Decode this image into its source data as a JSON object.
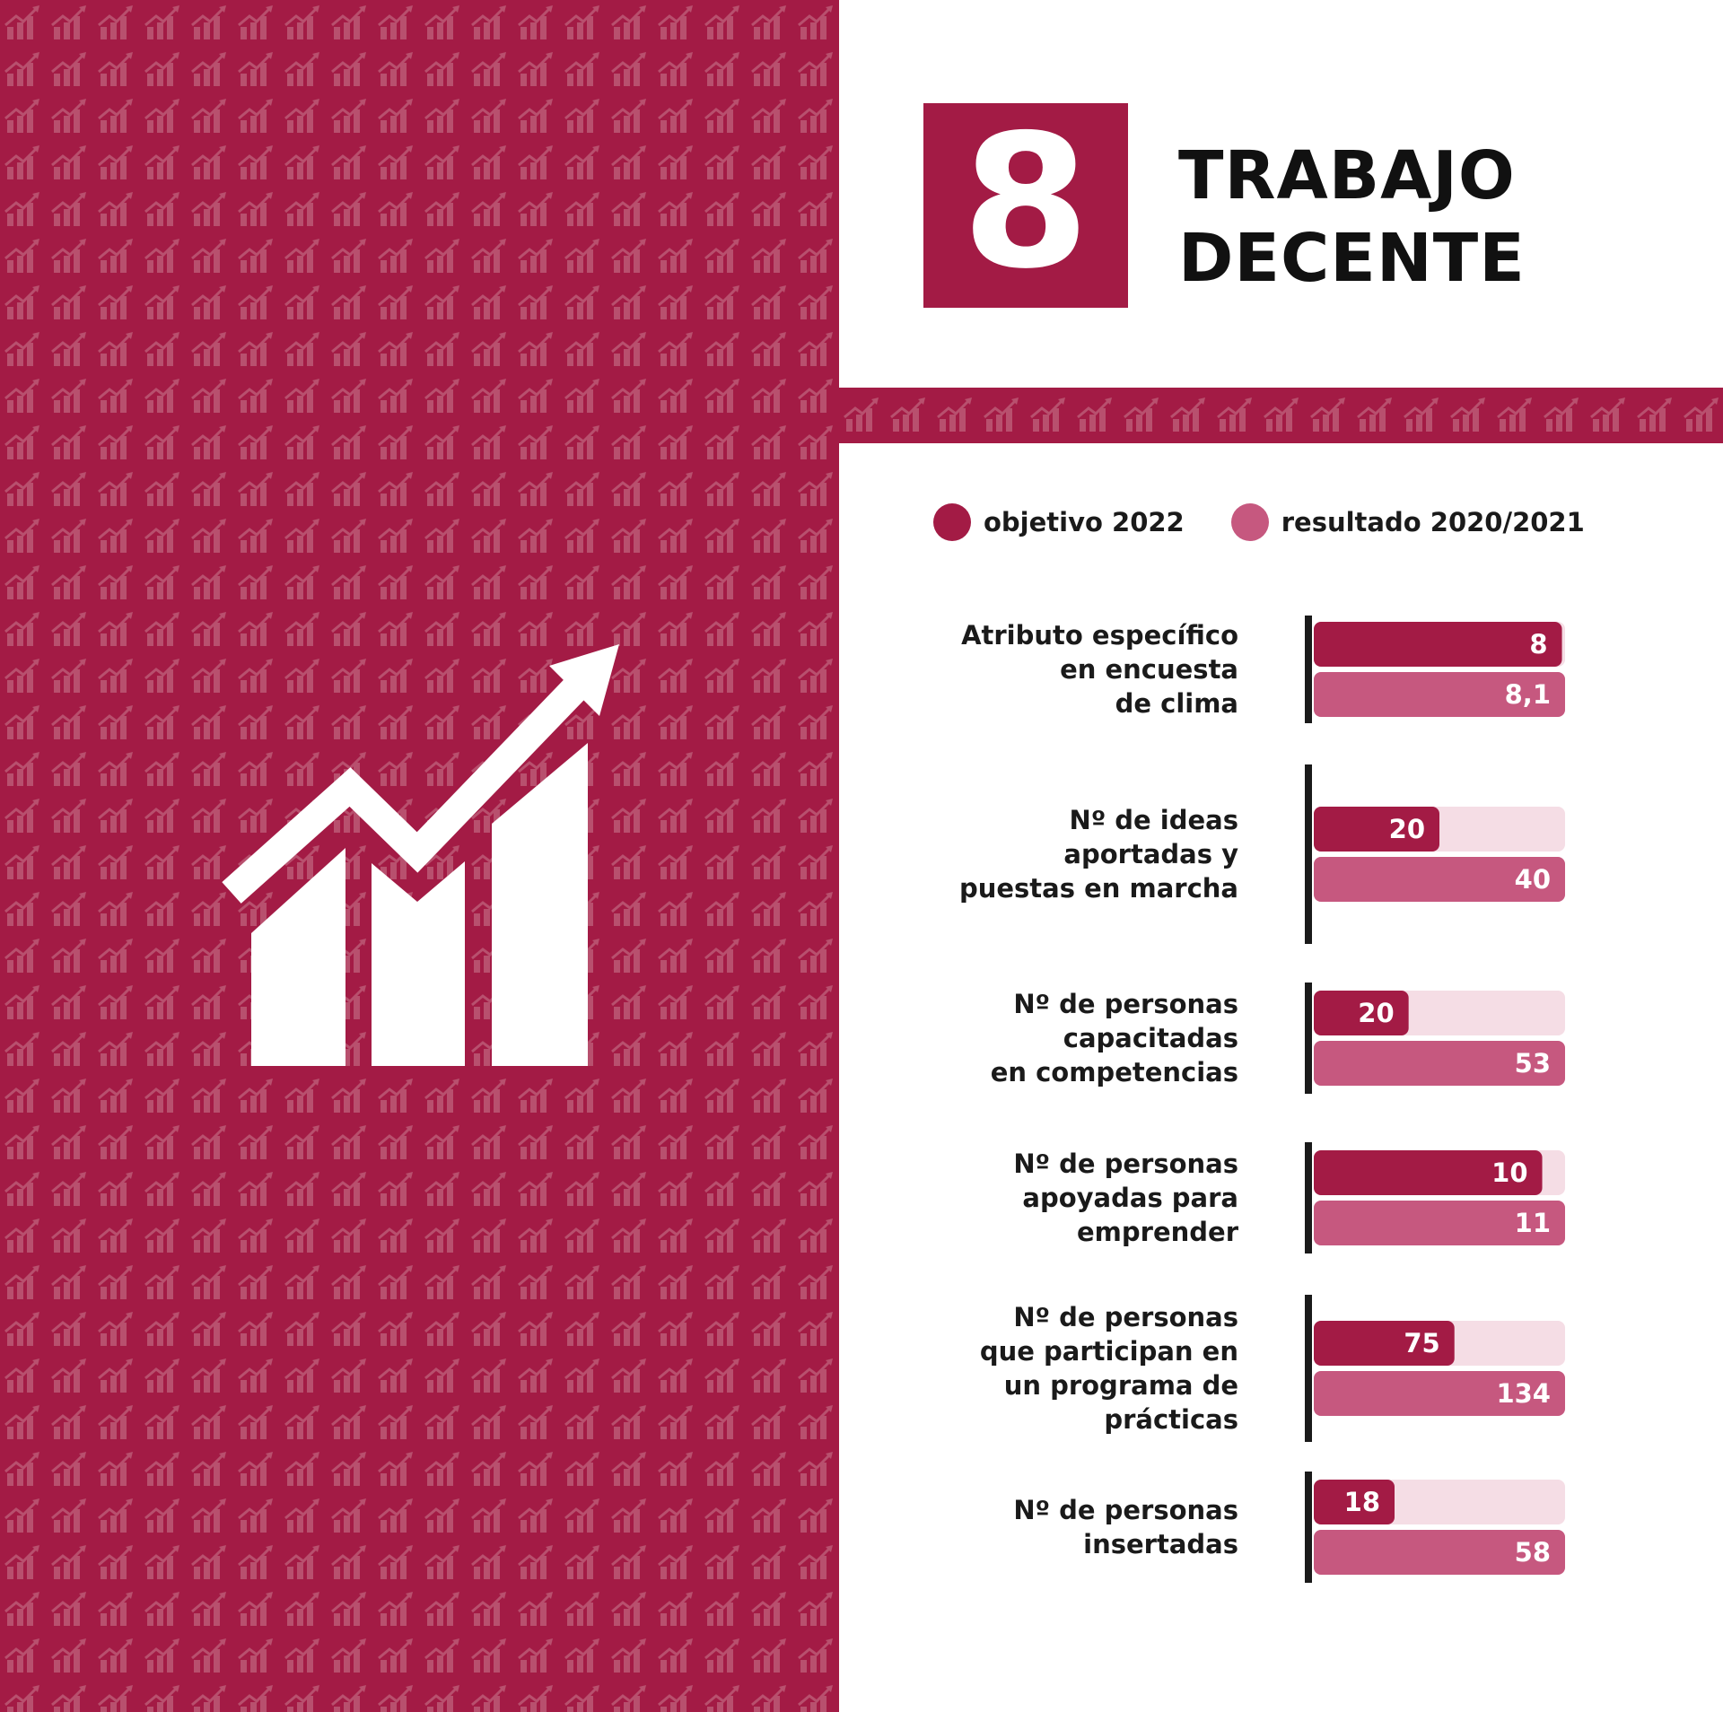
{
  "goal": {
    "number": "8",
    "title_line1": "TRABAJO",
    "title_line2": "DECENTE"
  },
  "colors": {
    "brand": "#a31b45",
    "brand_pattern": "#b8506e",
    "result": "#c6587f",
    "track": "#f5dde5",
    "axis": "#1a1a1a",
    "icon": "#ffffff"
  },
  "icon": "growth-chart-icon",
  "legend": [
    {
      "label": "objetivo 2022",
      "color": "#a31b45"
    },
    {
      "label": "resultado 2020/2021",
      "color": "#c6587f"
    }
  ],
  "chart_data": {
    "type": "bar",
    "orientation": "horizontal",
    "title": "",
    "xlabel": "",
    "ylabel": "",
    "legend_position": "top",
    "grid": false,
    "categories": [
      [
        "Atributo específico",
        "en encuesta",
        "de clima"
      ],
      [
        "Nº de ideas",
        "aportadas y",
        "puestas en marcha"
      ],
      [
        "Nº de personas",
        "capacitadas",
        "en competencias"
      ],
      [
        "Nº de personas",
        "apoyadas para",
        "emprender"
      ],
      [
        "Nº de personas",
        "que participan en",
        "un programa de",
        "prácticas"
      ],
      [
        "Nº de personas",
        "insertadas"
      ]
    ],
    "series": [
      {
        "name": "objetivo 2022",
        "values": [
          8,
          20,
          20,
          10,
          75,
          18
        ],
        "value_labels": [
          "8",
          "20",
          "20",
          "10",
          "75",
          "18"
        ]
      },
      {
        "name": "resultado 2020/2021",
        "values": [
          8.1,
          40,
          53,
          11,
          134,
          58
        ],
        "value_labels": [
          "8,1",
          "40",
          "53",
          "11",
          "134",
          "58"
        ]
      }
    ],
    "scale": "each category scaled independently, full track = larger value"
  }
}
